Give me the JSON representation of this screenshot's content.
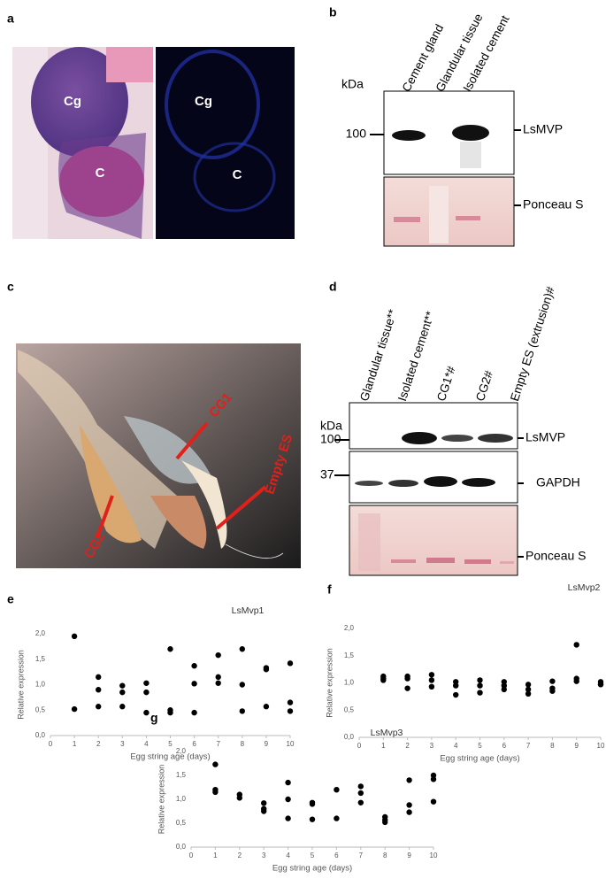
{
  "panel_a": {
    "label": "a",
    "left_image": [
      "Cg",
      "C"
    ],
    "right_image": [
      "Cg",
      "C"
    ]
  },
  "panel_b": {
    "label": "b",
    "kda": "kDa",
    "lanes": [
      "Cement gland",
      "Glandular tissue",
      "Isolated cement"
    ],
    "marker": "100",
    "bands": [
      "LsMVP",
      "Ponceau S"
    ]
  },
  "panel_c": {
    "label": "c",
    "annotations": [
      "CG1",
      "Empty ES",
      "CG2"
    ]
  },
  "panel_d": {
    "label": "d",
    "kda": "kDa",
    "lanes": [
      "Glandular tissue**",
      "Isolated cement**",
      "CG1*#",
      "CG2#",
      "Empty ES (extrusion)#"
    ],
    "markers": [
      "100",
      "37"
    ],
    "bands": [
      "LsMVP",
      "GAPDH",
      "Ponceau S"
    ]
  },
  "chart_data": [
    {
      "type": "scatter",
      "panel_label": "e",
      "title": "LsMvp1",
      "x_label": "Egg string age (days)",
      "y_label": "Relative expression",
      "color": "#000000",
      "x": [
        1,
        1,
        2,
        2,
        2,
        3,
        3,
        3,
        4,
        4,
        4,
        5,
        5,
        5,
        6,
        6,
        6,
        7,
        7,
        7,
        8,
        8,
        8,
        9,
        9,
        9,
        10,
        10,
        10
      ],
      "values": [
        1.95,
        0.52,
        1.15,
        0.9,
        0.57,
        0.98,
        0.85,
        0.57,
        1.03,
        0.85,
        0.45,
        1.7,
        0.5,
        0.45,
        1.37,
        1.02,
        0.45,
        1.58,
        1.15,
        1.03,
        1.7,
        1.0,
        0.48,
        1.33,
        1.3,
        0.57,
        1.42,
        0.65,
        0.48
      ],
      "xlim": [
        0,
        10
      ],
      "ylim": [
        0,
        2
      ],
      "xticks": [
        0,
        1,
        2,
        3,
        4,
        5,
        6,
        7,
        8,
        9,
        10
      ],
      "yticks": [
        {
          "value": 0,
          "label": "0,0"
        },
        {
          "value": 0.5,
          "label": "0,5"
        },
        {
          "value": 1,
          "label": "1,0"
        },
        {
          "value": 1.5,
          "label": "1,5"
        },
        {
          "value": 2,
          "label": "2,0"
        }
      ]
    },
    {
      "type": "scatter",
      "panel_label": "f",
      "title": "LsMvp2",
      "x_label": "Egg string age (days)",
      "y_label": "Relative expression",
      "color": "#000000",
      "x": [
        1,
        1,
        1,
        2,
        2,
        2,
        3,
        3,
        3,
        4,
        4,
        4,
        5,
        5,
        5,
        6,
        6,
        6,
        7,
        7,
        7,
        8,
        8,
        8,
        9,
        9,
        9,
        10,
        10,
        10
      ],
      "values": [
        1.12,
        1.08,
        1.05,
        1.12,
        1.08,
        0.9,
        1.15,
        1.05,
        0.93,
        1.02,
        0.95,
        0.78,
        1.05,
        0.95,
        0.82,
        1.02,
        0.95,
        0.88,
        0.97,
        0.88,
        0.8,
        1.03,
        0.9,
        0.85,
        1.7,
        1.08,
        1.03,
        1.02,
        0.98,
        0.97
      ],
      "xlim": [
        0,
        10
      ],
      "ylim": [
        0,
        2
      ],
      "xticks": [
        0,
        1,
        2,
        3,
        4,
        5,
        6,
        7,
        8,
        9,
        10
      ],
      "yticks": [
        {
          "value": 0,
          "label": "0,0"
        },
        {
          "value": 0.5,
          "label": "0,5"
        },
        {
          "value": 1,
          "label": "1,0"
        },
        {
          "value": 1.5,
          "label": "1,5"
        },
        {
          "value": 2,
          "label": "2,0"
        }
      ]
    },
    {
      "type": "scatter",
      "panel_label": "g",
      "title": "LsMvp3",
      "x_label": "Egg string age (days)",
      "y_label": "Relative expression",
      "color": "#000000",
      "x": [
        1,
        1,
        1,
        2,
        2,
        3,
        3,
        3,
        4,
        4,
        4,
        5,
        5,
        5,
        6,
        6,
        7,
        7,
        7,
        8,
        8,
        8,
        9,
        9,
        9,
        10,
        10,
        10
      ],
      "values": [
        1.73,
        1.2,
        1.15,
        1.1,
        1.03,
        0.92,
        0.8,
        0.75,
        1.35,
        1.0,
        0.6,
        0.93,
        0.9,
        0.58,
        1.2,
        0.6,
        1.27,
        1.13,
        0.93,
        0.63,
        0.57,
        0.52,
        1.4,
        0.88,
        0.73,
        1.5,
        1.42,
        0.95
      ],
      "xlim": [
        0,
        10
      ],
      "ylim": [
        0,
        2
      ],
      "xticks": [
        0,
        1,
        2,
        3,
        4,
        5,
        6,
        7,
        8,
        9,
        10
      ],
      "yticks": [
        {
          "value": 0,
          "label": "0,0"
        },
        {
          "value": 0.5,
          "label": "0,5"
        },
        {
          "value": 1,
          "label": "1,0"
        },
        {
          "value": 1.5,
          "label": "1,5"
        },
        {
          "value": 2,
          "label": "2,0"
        }
      ]
    }
  ]
}
